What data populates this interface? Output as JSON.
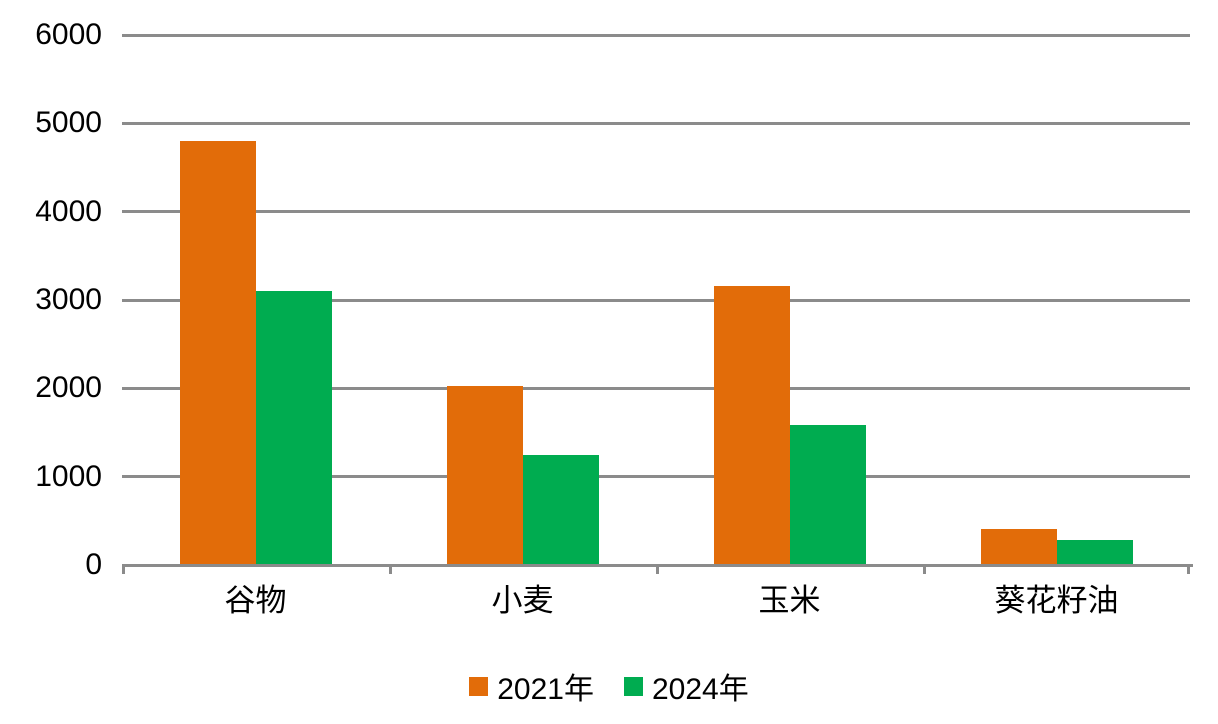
{
  "chart_data": {
    "type": "bar",
    "title": "",
    "xlabel": "",
    "ylabel": "",
    "categories": [
      "谷物",
      "小麦",
      "玉米",
      "葵花籽油"
    ],
    "series": [
      {
        "name": "2021年",
        "color": "#E26C09",
        "values": [
          4800,
          2030,
          3160,
          410
        ]
      },
      {
        "name": "2024年",
        "color": "#00AC50",
        "values": [
          3100,
          1250,
          1580,
          280
        ]
      }
    ],
    "ylim": [
      0,
      6000
    ],
    "yticks": [
      0,
      1000,
      2000,
      3000,
      4000,
      5000,
      6000
    ],
    "grid": true,
    "gridline_color": "#8B8B8B",
    "text_color": "#000000",
    "legend_position": "bottom"
  }
}
